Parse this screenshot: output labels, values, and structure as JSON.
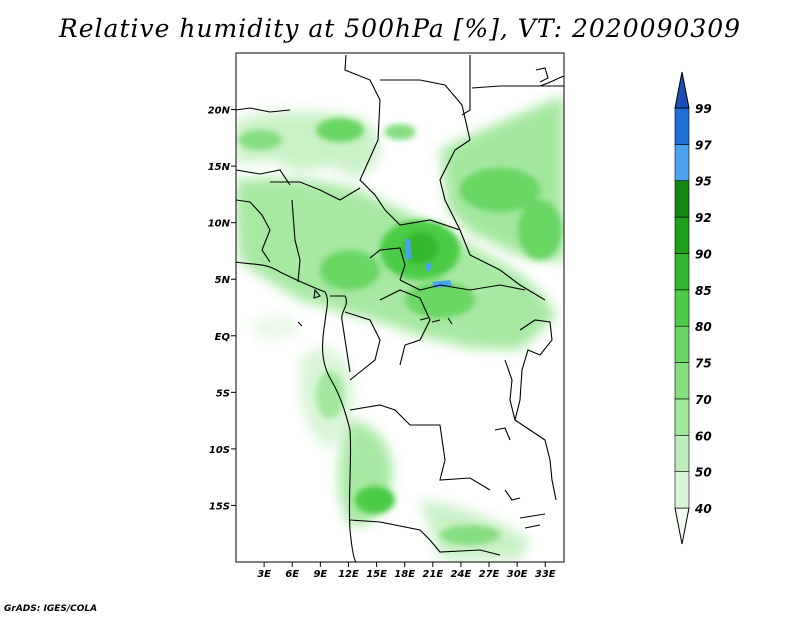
{
  "title": "Relative humidity at 500hPa [%], VT: 2020090309",
  "credit": "GrADS: IGES/COLA",
  "map": {
    "lat_labels": [
      "20N",
      "15N",
      "10N",
      "5N",
      "EQ",
      "5S",
      "10S",
      "15S"
    ],
    "lat_values": [
      20,
      15,
      10,
      5,
      0,
      -5,
      -10,
      -15
    ],
    "lon_labels": [
      "3E",
      "6E",
      "9E",
      "12E",
      "15E",
      "18E",
      "21E",
      "24E",
      "27E",
      "30E",
      "33E"
    ],
    "lon_values": [
      3,
      6,
      9,
      12,
      15,
      18,
      21,
      24,
      27,
      30,
      33
    ],
    "extent": {
      "lon_min": 0,
      "lon_max": 35,
      "lat_min": -20,
      "lat_max": 25
    }
  },
  "colorbar": {
    "levels": [
      "40",
      "50",
      "60",
      "70",
      "75",
      "80",
      "85",
      "90",
      "92",
      "95",
      "97",
      "99"
    ],
    "colors": [
      "#f0fbef",
      "#d8f5d6",
      "#bdeeb9",
      "#a3e79e",
      "#86de80",
      "#6ad664",
      "#4ccc46",
      "#33b92e",
      "#1ea01a",
      "#128a10",
      "#4aa3ef",
      "#1f6fd8",
      "#1b4fb8"
    ]
  }
}
